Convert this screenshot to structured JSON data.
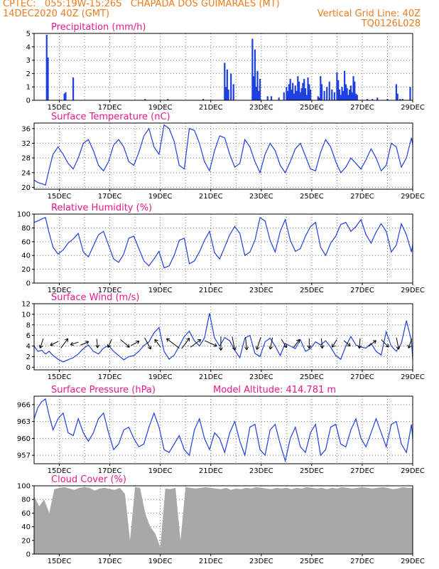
{
  "header": {
    "line1_left": "CPTEC:   055:19W-15:26S   CHAPADA DOS GUIMARAES (MT)",
    "line2_left": "14DEC2020 40Z (GMT)",
    "line2_right": "Vertical Grid Line: 40Z",
    "line3_right": "TQ0126L028"
  },
  "colors": {
    "header": "#f07a1e",
    "titles": "#e8198b",
    "series": "#1f3fe0",
    "cloud": "#a8a8a8",
    "arrows": "#000000"
  },
  "x_axis": {
    "range": [
      14.0,
      29.0
    ],
    "tick_days": [
      15,
      17,
      19,
      21,
      23,
      25,
      27,
      29
    ],
    "tick_labels": [
      "15DEC",
      "17DEC",
      "19DEC",
      "21DEC",
      "23DEC",
      "25DEC",
      "27DEC",
      "29DEC"
    ]
  },
  "chart_data": [
    {
      "id": "precip",
      "type": "bar",
      "title": "Precipitation  (mm/h)",
      "ylabel": "mm/h",
      "ylim": [
        0,
        5
      ],
      "yticks": [
        0,
        1,
        2,
        3,
        4,
        5
      ],
      "x": [
        14.5,
        14.55,
        15.2,
        15.25,
        15.55,
        18.4,
        19.3,
        20.7,
        21.55,
        21.6,
        21.65,
        21.7,
        21.8,
        21.9,
        22.65,
        22.7,
        22.75,
        22.8,
        22.85,
        22.9,
        22.95,
        23.25,
        23.4,
        23.7,
        23.9,
        24.0,
        24.05,
        24.1,
        24.15,
        24.2,
        24.25,
        24.3,
        24.35,
        24.4,
        24.45,
        24.5,
        24.55,
        24.6,
        24.65,
        24.7,
        24.75,
        24.8,
        24.85,
        24.9,
        24.95,
        25.25,
        25.3,
        25.35,
        25.4,
        25.5,
        25.6,
        25.7,
        25.8,
        25.9,
        26.0,
        26.05,
        26.1,
        26.15,
        26.2,
        26.25,
        26.3,
        26.35,
        26.4,
        26.45,
        26.5,
        26.55,
        26.6,
        26.65,
        26.7,
        26.75,
        26.8,
        27.2,
        27.4,
        27.6,
        28.0,
        28.35,
        28.4,
        28.5,
        28.6,
        28.9
      ],
      "values": [
        4.9,
        3.2,
        0.5,
        0.6,
        1.7,
        0.1,
        0.1,
        0.1,
        2.8,
        1.0,
        2.3,
        0.8,
        2.0,
        1.2,
        4.6,
        1.8,
        3.8,
        1.0,
        2.2,
        0.7,
        1.6,
        0.3,
        0.3,
        0.2,
        0.6,
        1.0,
        0.7,
        1.2,
        1.6,
        0.8,
        1.3,
        0.5,
        1.1,
        0.7,
        1.8,
        1.4,
        0.6,
        0.9,
        1.3,
        1.6,
        0.9,
        0.4,
        1.7,
        1.2,
        0.8,
        0.3,
        0.2,
        1.8,
        1.2,
        0.7,
        1.0,
        1.4,
        0.8,
        0.6,
        2.1,
        1.5,
        0.8,
        0.4,
        1.0,
        0.7,
        2.2,
        1.2,
        0.9,
        0.4,
        0.8,
        1.1,
        0.6,
        1.8,
        1.4,
        0.5,
        0.4,
        0.1,
        0.1,
        0.2,
        0.1,
        1.2,
        0.5,
        0.1,
        0.1,
        1.0
      ]
    },
    {
      "id": "temp",
      "type": "line",
      "title": "Surface Temperature  (nC)",
      "ylabel": "nC",
      "ylim": [
        19.5,
        37.5
      ],
      "yticks": [
        20,
        24,
        28,
        32,
        36
      ],
      "x": [
        14.0,
        14.15,
        14.3,
        14.45,
        14.6,
        14.75,
        14.95,
        15.15,
        15.35,
        15.55,
        15.75,
        15.95,
        16.15,
        16.35,
        16.55,
        16.75,
        16.95,
        17.15,
        17.35,
        17.55,
        17.75,
        17.95,
        18.15,
        18.35,
        18.55,
        18.75,
        18.95,
        19.15,
        19.35,
        19.55,
        19.75,
        19.95,
        20.15,
        20.35,
        20.55,
        20.75,
        20.95,
        21.15,
        21.35,
        21.55,
        21.75,
        21.95,
        22.15,
        22.35,
        22.55,
        22.75,
        22.95,
        23.15,
        23.35,
        23.55,
        23.75,
        23.95,
        24.15,
        24.35,
        24.55,
        24.75,
        24.95,
        25.15,
        25.35,
        25.55,
        25.75,
        25.95,
        26.15,
        26.35,
        26.55,
        26.75,
        26.95,
        27.15,
        27.35,
        27.55,
        27.75,
        27.95,
        28.15,
        28.35,
        28.55,
        28.75,
        28.95,
        29.0
      ],
      "values": [
        22.0,
        21.3,
        21.0,
        20.6,
        25.0,
        29.0,
        31.0,
        29.0,
        26.5,
        25.0,
        28.0,
        32.0,
        33.0,
        30.0,
        26.0,
        24.5,
        27.0,
        31.5,
        33.0,
        31.0,
        27.0,
        26.0,
        29.5,
        34.0,
        36.0,
        31.0,
        29.0,
        37.0,
        36.0,
        32.5,
        26.0,
        25.0,
        36.0,
        35.5,
        32.0,
        27.0,
        24.5,
        30.0,
        34.0,
        33.5,
        29.0,
        25.5,
        26.5,
        33.0,
        31.0,
        27.0,
        24.0,
        29.0,
        32.0,
        30.0,
        26.0,
        24.0,
        27.0,
        30.5,
        32.0,
        28.5,
        25.0,
        24.5,
        29.5,
        33.0,
        31.0,
        27.0,
        24.0,
        25.5,
        28.0,
        26.5,
        25.0,
        27.5,
        30.5,
        28.0,
        24.5,
        26.0,
        32.0,
        31.0,
        25.5,
        28.0,
        33.5,
        31.5
      ]
    },
    {
      "id": "rh",
      "type": "line",
      "title": "Relative Humidity  (%)",
      "ylabel": "%",
      "ylim": [
        0,
        100
      ],
      "yticks": [
        0,
        20,
        40,
        60,
        80,
        100
      ],
      "x": [
        14.0,
        14.15,
        14.3,
        14.45,
        14.6,
        14.75,
        14.95,
        15.15,
        15.35,
        15.55,
        15.75,
        15.95,
        16.15,
        16.35,
        16.55,
        16.75,
        16.95,
        17.15,
        17.35,
        17.55,
        17.75,
        17.95,
        18.15,
        18.35,
        18.55,
        18.75,
        18.95,
        19.15,
        19.35,
        19.55,
        19.75,
        19.95,
        20.15,
        20.35,
        20.55,
        20.75,
        20.95,
        21.15,
        21.35,
        21.55,
        21.75,
        21.95,
        22.15,
        22.35,
        22.55,
        22.75,
        22.95,
        23.15,
        23.35,
        23.55,
        23.75,
        23.95,
        24.15,
        24.35,
        24.55,
        24.75,
        24.95,
        25.15,
        25.35,
        25.55,
        25.75,
        25.95,
        26.15,
        26.35,
        26.55,
        26.75,
        26.95,
        27.15,
        27.35,
        27.55,
        27.75,
        27.95,
        28.15,
        28.35,
        28.55,
        28.75,
        28.95,
        29.0
      ],
      "values": [
        88.0,
        90.0,
        93.0,
        95.0,
        72.0,
        52.0,
        42.0,
        48.0,
        58.0,
        64.0,
        72.0,
        45.0,
        38.0,
        54.0,
        70.0,
        75.0,
        55.0,
        35.0,
        30.0,
        42.0,
        65.0,
        68.0,
        50.0,
        32.0,
        25.0,
        35.0,
        46.0,
        22.0,
        25.0,
        40.0,
        62.0,
        65.0,
        28.0,
        32.0,
        45.0,
        62.0,
        75.0,
        44.0,
        35.0,
        52.0,
        70.0,
        82.0,
        72.0,
        40.0,
        45.0,
        62.0,
        95.0,
        90.0,
        62.0,
        45.0,
        75.0,
        92.0,
        62.0,
        46.0,
        50.0,
        68.0,
        82.0,
        88.0,
        52.0,
        40.0,
        58.0,
        68.0,
        85.0,
        88.0,
        75.0,
        82.0,
        92.0,
        70.0,
        58.0,
        74.0,
        86.0,
        75.0,
        45.0,
        55.0,
        86.0,
        70.0,
        45.0,
        56.0
      ]
    },
    {
      "id": "wind",
      "type": "line",
      "title": "Surface Wind  (m/s)",
      "ylabel": "m/s",
      "ylim": [
        -0.5,
        12.0
      ],
      "yticks": [
        0,
        2,
        4,
        6,
        8,
        10,
        12
      ],
      "x": [
        14.0,
        14.15,
        14.3,
        14.45,
        14.6,
        14.75,
        14.95,
        15.15,
        15.35,
        15.55,
        15.75,
        15.95,
        16.15,
        16.35,
        16.55,
        16.75,
        16.95,
        17.15,
        17.35,
        17.55,
        17.75,
        17.95,
        18.15,
        18.35,
        18.55,
        18.75,
        18.95,
        19.15,
        19.35,
        19.55,
        19.75,
        19.95,
        20.15,
        20.35,
        20.55,
        20.75,
        20.95,
        21.15,
        21.35,
        21.55,
        21.75,
        21.95,
        22.15,
        22.35,
        22.55,
        22.75,
        22.95,
        23.15,
        23.35,
        23.55,
        23.75,
        23.95,
        24.15,
        24.35,
        24.55,
        24.75,
        24.95,
        25.15,
        25.35,
        25.55,
        25.75,
        25.95,
        26.15,
        26.35,
        26.55,
        26.75,
        26.95,
        27.15,
        27.35,
        27.55,
        27.75,
        27.95,
        28.15,
        28.35,
        28.55,
        28.75,
        28.95,
        29.0
      ],
      "values": [
        4.0,
        3.0,
        3.2,
        2.5,
        3.0,
        2.2,
        1.5,
        1.0,
        1.4,
        1.8,
        2.5,
        3.5,
        4.2,
        3.0,
        2.5,
        3.6,
        4.1,
        3.0,
        2.2,
        1.4,
        2.0,
        2.2,
        3.0,
        4.1,
        4.8,
        6.5,
        7.5,
        3.0,
        1.5,
        2.3,
        4.0,
        5.8,
        6.8,
        5.0,
        4.0,
        5.5,
        10.2,
        5.5,
        4.0,
        5.6,
        5.0,
        3.2,
        1.8,
        5.5,
        6.0,
        2.6,
        2.0,
        4.8,
        5.5,
        4.0,
        2.2,
        4.5,
        4.0,
        3.5,
        5.2,
        3.0,
        3.5,
        4.8,
        4.2,
        5.0,
        3.8,
        2.2,
        1.5,
        4.0,
        5.8,
        4.2,
        3.8,
        3.6,
        4.5,
        3.0,
        2.3,
        6.7,
        4.0,
        3.0,
        4.5,
        8.8,
        5.0,
        1.5
      ],
      "arrows": {
        "note": "wind direction arrows (dx,dy direction; length ~ speed)",
        "x": [
          14.3,
          14.8,
          15.2,
          15.6,
          16.0,
          16.5,
          17.0,
          17.6,
          18.0,
          18.5,
          18.9,
          19.5,
          20.0,
          20.4,
          21.0,
          21.4,
          21.9,
          22.4,
          22.9,
          23.4,
          23.9,
          24.4,
          24.9,
          25.4,
          25.9,
          26.4,
          26.9,
          27.4,
          27.9,
          28.4,
          28.9
        ],
        "dx": [
          -0.3,
          -0.8,
          0.6,
          -0.9,
          0.9,
          0.1,
          -0.4,
          0.7,
          0.9,
          0.5,
          -0.6,
          -0.8,
          0.6,
          0.8,
          0.9,
          0.0,
          0.2,
          0.1,
          -0.3,
          -0.2,
          0.5,
          0.6,
          0.0,
          0.1,
          -0.5,
          0.7,
          -0.1,
          0.8,
          0.7,
          0.2,
          -0.3
        ],
        "dy": [
          -0.9,
          -0.4,
          0.8,
          -0.3,
          0.4,
          -1.0,
          -0.9,
          -0.6,
          0.5,
          -0.9,
          0.8,
          0.6,
          0.8,
          0.6,
          -0.4,
          -1.0,
          -1.0,
          -1.0,
          -0.9,
          -1.0,
          -0.8,
          0.8,
          -1.0,
          -1.0,
          -0.8,
          -0.6,
          -1.0,
          0.6,
          -0.7,
          -1.0,
          -0.9
        ],
        "speed": [
          1.0,
          0.8,
          1.4,
          0.7,
          0.8,
          0.8,
          0.8,
          1.4,
          0.9,
          1.6,
          1.0,
          2.2,
          1.6,
          1.6,
          1.7,
          1.8,
          1.8,
          1.6,
          1.6,
          1.4,
          1.0,
          1.0,
          1.0,
          1.0,
          0.8,
          0.7,
          1.0,
          0.9,
          1.1,
          1.4,
          1.0
        ]
      }
    },
    {
      "id": "pres",
      "type": "line",
      "title": "Surface Pressure  (hPa)",
      "ylabel": "hPa",
      "subtitle": "Model Altitude:  414.781  m",
      "ylim": [
        955.5,
        967.5
      ],
      "yticks": [
        957,
        960,
        963,
        966
      ],
      "x": [
        14.0,
        14.15,
        14.3,
        14.45,
        14.6,
        14.75,
        14.95,
        15.15,
        15.35,
        15.55,
        15.75,
        15.95,
        16.15,
        16.35,
        16.55,
        16.75,
        16.95,
        17.15,
        17.35,
        17.55,
        17.75,
        17.95,
        18.15,
        18.35,
        18.55,
        18.75,
        18.95,
        19.15,
        19.35,
        19.55,
        19.75,
        19.95,
        20.15,
        20.35,
        20.55,
        20.75,
        20.95,
        21.15,
        21.35,
        21.55,
        21.75,
        21.95,
        22.15,
        22.35,
        22.55,
        22.75,
        22.95,
        23.15,
        23.35,
        23.55,
        23.75,
        23.95,
        24.15,
        24.35,
        24.55,
        24.75,
        24.95,
        25.15,
        25.35,
        25.55,
        25.75,
        25.95,
        26.15,
        26.35,
        26.55,
        26.75,
        26.95,
        27.15,
        27.35,
        27.55,
        27.75,
        27.95,
        28.15,
        28.35,
        28.55,
        28.75,
        28.95,
        29.0
      ],
      "values": [
        963.5,
        965.5,
        966.5,
        967.0,
        964.0,
        961.5,
        963.5,
        964.5,
        961.0,
        960.5,
        963.5,
        961.0,
        959.5,
        961.0,
        963.5,
        964.5,
        961.0,
        958.0,
        959.0,
        961.5,
        962.0,
        960.0,
        958.5,
        959.0,
        962.0,
        964.5,
        962.0,
        958.0,
        957.5,
        959.0,
        960.5,
        958.0,
        957.0,
        961.5,
        963.5,
        960.0,
        958.0,
        961.0,
        960.0,
        957.5,
        961.0,
        963.0,
        959.5,
        957.0,
        962.0,
        962.5,
        958.0,
        957.0,
        961.5,
        962.5,
        959.0,
        956.0,
        960.0,
        962.0,
        958.5,
        957.5,
        961.0,
        962.5,
        957.0,
        958.0,
        962.0,
        962.5,
        959.0,
        958.5,
        961.5,
        963.5,
        960.0,
        958.5,
        961.0,
        963.5,
        961.0,
        958.5,
        962.5,
        963.0,
        959.0,
        957.5,
        962.5,
        960.0
      ]
    },
    {
      "id": "cloud",
      "type": "area",
      "title": "Cloud Cover  (%)",
      "ylabel": "%",
      "ylim": [
        0,
        100
      ],
      "yticks": [
        0,
        20,
        40,
        60,
        80,
        100
      ],
      "x": [
        14.0,
        14.2,
        14.4,
        14.6,
        14.8,
        15.0,
        15.2,
        15.4,
        15.6,
        15.8,
        16.0,
        16.2,
        16.4,
        16.6,
        16.8,
        17.0,
        17.2,
        17.4,
        17.6,
        17.8,
        18.0,
        18.2,
        18.4,
        18.6,
        18.8,
        19.0,
        19.2,
        19.4,
        19.6,
        19.8,
        20.0,
        20.2,
        20.4,
        20.6,
        20.8,
        21.0,
        21.2,
        21.4,
        21.6,
        21.8,
        22.0,
        22.2,
        22.4,
        22.6,
        22.8,
        23.0,
        23.2,
        23.4,
        23.6,
        23.8,
        24.0,
        24.2,
        24.4,
        24.6,
        24.8,
        25.0,
        25.2,
        25.4,
        25.6,
        25.8,
        26.0,
        26.2,
        26.4,
        26.6,
        26.8,
        27.0,
        27.2,
        27.4,
        27.6,
        27.8,
        28.0,
        28.2,
        28.4,
        28.6,
        28.8,
        29.0
      ],
      "values": [
        85.0,
        70.0,
        80.0,
        60.0,
        95.0,
        97.0,
        98.0,
        96.0,
        94.0,
        97.0,
        98.0,
        97.0,
        93.0,
        96.0,
        97.0,
        95.0,
        94.0,
        97.0,
        88.0,
        20.0,
        98.0,
        97.0,
        60.0,
        40.0,
        30.0,
        10.0,
        96.0,
        95.0,
        97.0,
        20.0,
        98.0,
        97.0,
        96.0,
        97.0,
        98.0,
        97.0,
        96.0,
        95.0,
        97.0,
        94.0,
        96.0,
        95.0,
        97.0,
        96.0,
        98.0,
        97.0,
        96.0,
        95.0,
        97.0,
        96.0,
        97.0,
        95.0,
        97.0,
        96.0,
        98.0,
        97.0,
        96.0,
        97.0,
        95.0,
        97.0,
        96.0,
        98.0,
        97.0,
        96.0,
        97.0,
        98.0,
        97.0,
        96.0,
        97.0,
        98.0,
        97.0,
        95.0,
        96.0,
        98.0,
        97.0,
        97.0
      ]
    }
  ]
}
